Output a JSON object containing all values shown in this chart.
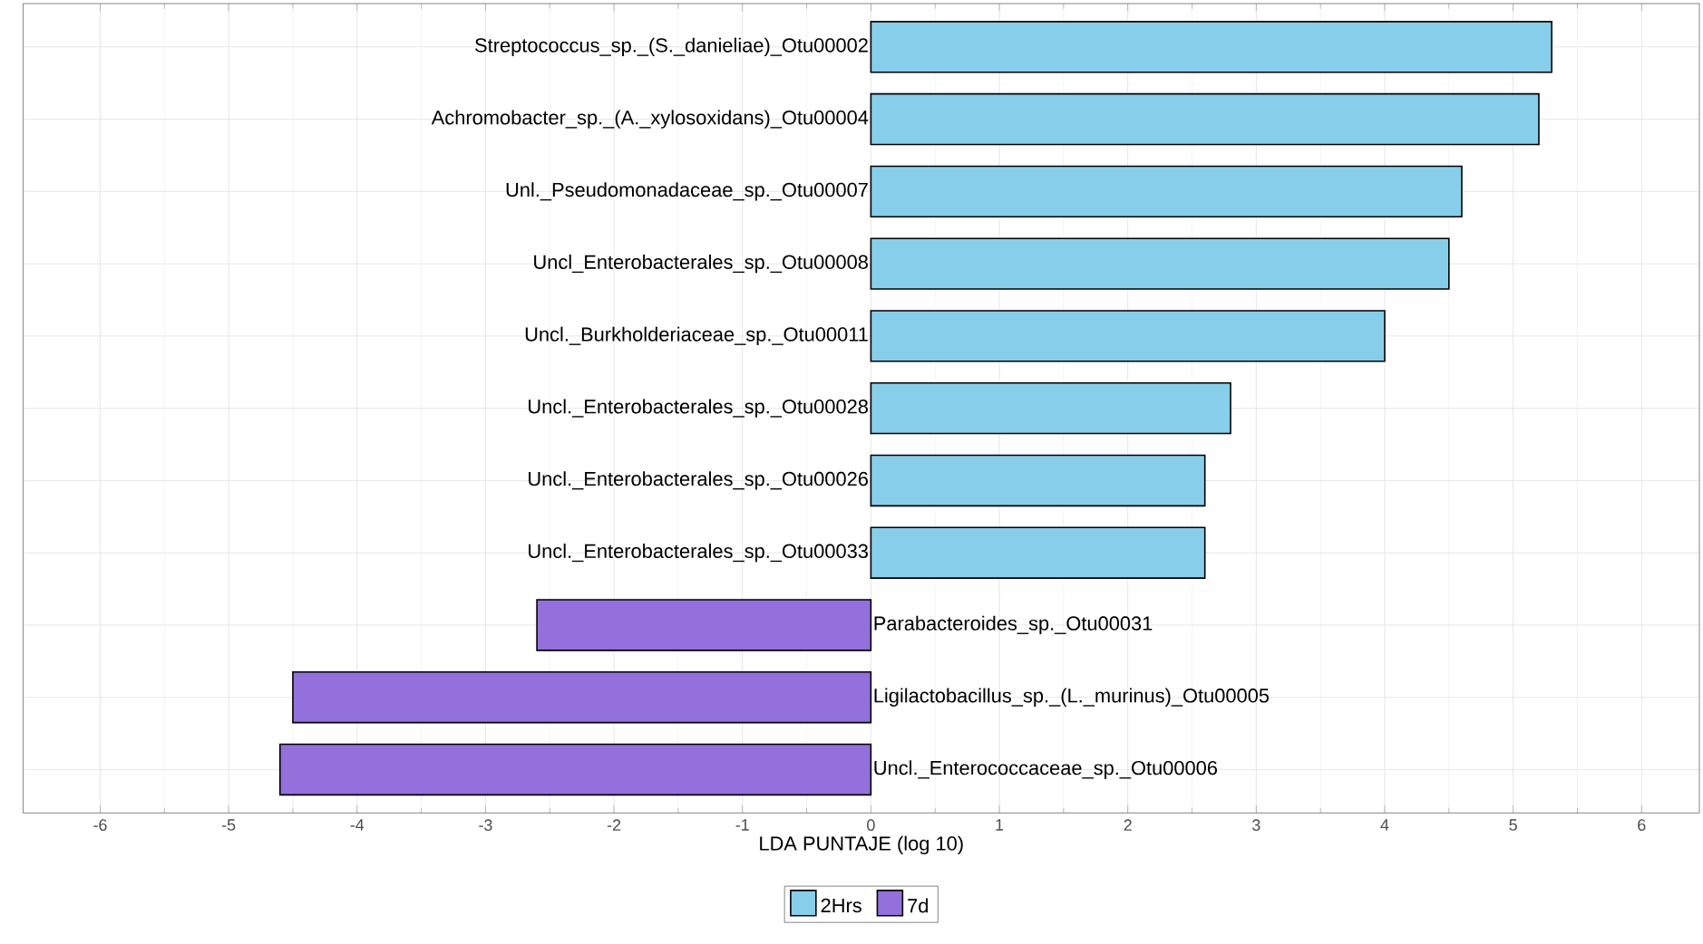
{
  "chart_data": {
    "type": "bar",
    "orientation": "horizontal",
    "xlabel": "LDA PUNTAJE (log 10)",
    "categories": [
      "Streptococcus_sp._(S._danieliae)_Otu00002",
      "Achromobacter_sp._(A._xylosoxidans)_Otu00004",
      "Unl._Pseudomonadaceae_sp._Otu00007",
      "Uncl_Enterobacterales_sp._Otu00008",
      "Uncl._Burkholderiaceae_sp._Otu00011",
      "Uncl._Enterobacterales_sp._Otu00028",
      "Uncl._Enterobacterales_sp._Otu00026",
      "Uncl._Enterobacterales_sp._Otu00033",
      "Parabacteroides_sp._Otu00031",
      "Ligilactobacillus_sp._(L._murinus)_Otu00005",
      "Uncl._Enterococcaceae_sp._Otu00006"
    ],
    "series": [
      {
        "name": "2Hrs",
        "color": "#87ceeb",
        "values": [
          5.3,
          5.2,
          4.6,
          4.5,
          4.0,
          2.8,
          2.6,
          2.6,
          null,
          null,
          null
        ]
      },
      {
        "name": "7d",
        "color": "#9370db",
        "values": [
          null,
          null,
          null,
          null,
          null,
          null,
          null,
          null,
          -2.6,
          -4.5,
          -4.6
        ]
      }
    ],
    "xlim": [
      -6.6,
      6.45
    ],
    "xticks": [
      -6,
      -5,
      -4,
      -3,
      -2,
      -1,
      0,
      1,
      2,
      3,
      4,
      5,
      6
    ],
    "grid": true,
    "legend": "bottom"
  }
}
